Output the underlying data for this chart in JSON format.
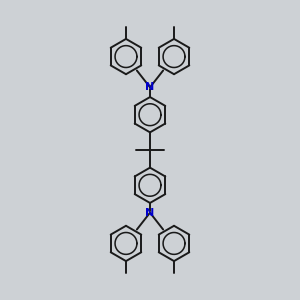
{
  "bg_color": "#cdd1d5",
  "bond_color": "#1a1a1a",
  "nitrogen_color": "#0000cc",
  "nitrogen_label": "N",
  "line_width": 1.4,
  "font_size_N": 8,
  "fig_width": 3.0,
  "fig_height": 3.0,
  "dpi": 100,
  "xlim": [
    -1.15,
    1.15
  ],
  "ylim": [
    -1.6,
    1.6
  ],
  "hex_r": 0.19
}
